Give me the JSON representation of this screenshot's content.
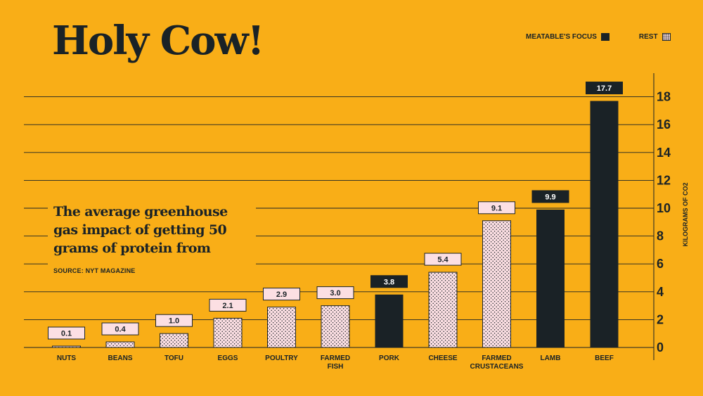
{
  "chart_data": {
    "type": "bar",
    "title": "Holy Cow!",
    "subtitle": "The average greenhouse gas impact of getting 50 grams of protein from",
    "source": "SOURCE: NYT MAGAZINE",
    "ylabel": "KILOGRAMS OF CO2",
    "ylim": [
      0,
      19.5
    ],
    "yticks": [
      0,
      2,
      4,
      6,
      8,
      10,
      12,
      14,
      16,
      18
    ],
    "categories": [
      "NUTS",
      "BEANS",
      "TOFU",
      "EGGS",
      "POULTRY",
      "FARMED\nFISH",
      "PORK",
      "CHEESE",
      "FARMED\nCRUSTACEANS",
      "LAMB",
      "BEEF"
    ],
    "values": [
      0.1,
      0.4,
      1.0,
      2.1,
      2.9,
      3.0,
      3.8,
      5.4,
      9.1,
      9.9,
      17.7
    ],
    "value_labels": [
      "0.1",
      "0.4",
      "1.0",
      "2.1",
      "2.9",
      "3.0",
      "3.8",
      "5.4",
      "9.1",
      "9.9",
      "17.7"
    ],
    "group": [
      "rest",
      "rest",
      "rest",
      "rest",
      "rest",
      "rest",
      "focus",
      "rest",
      "rest",
      "focus",
      "focus"
    ],
    "legend": [
      {
        "label": "MEATABLE'S FOCUS",
        "key": "focus"
      },
      {
        "label": "REST",
        "key": "rest"
      }
    ],
    "legend_position": "top-right",
    "grid": true,
    "colors": {
      "background": "#F9AE17",
      "focus": "#1a2226",
      "rest": "#fcdfe3",
      "ink": "#1a2226"
    }
  }
}
